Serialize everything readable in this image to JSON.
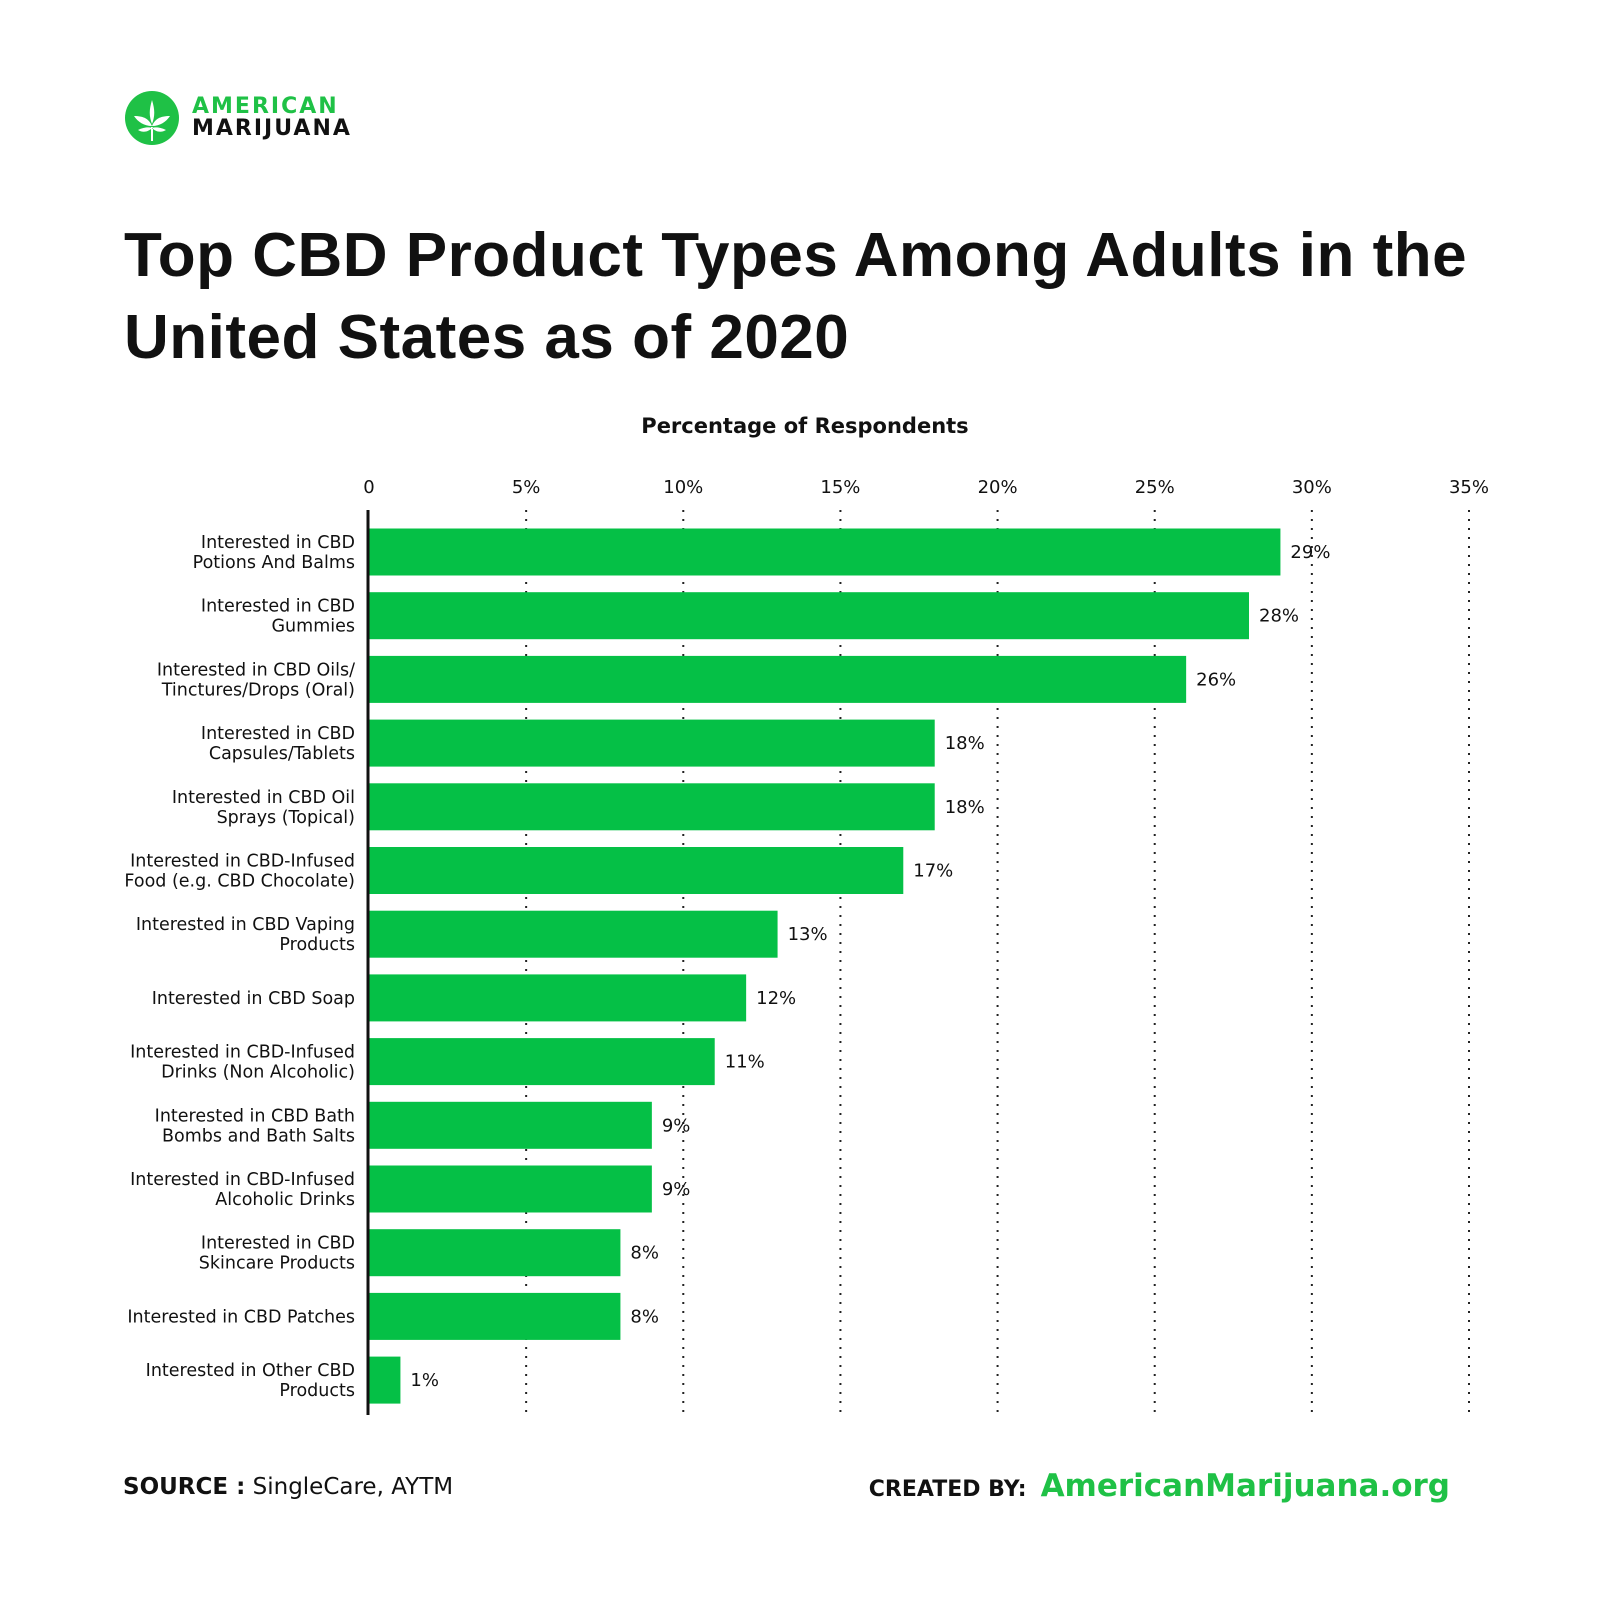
{
  "logo": {
    "line1": "AMERICAN",
    "line2": "MARIJUANA",
    "icon": "cannabis-leaf-circle-icon",
    "color": "#1fc146"
  },
  "title": "Top CBD Product Types Among Adults in the United States as of 2020",
  "chart_data": {
    "type": "bar",
    "orientation": "horizontal",
    "title": "Top CBD Product Types Among Adults in the United States as of 2020",
    "xlabel": "Percentage of Respondents",
    "ylabel": "",
    "xlim": [
      0,
      35
    ],
    "xticks": [
      "0",
      "5%",
      "10%",
      "15%",
      "20%",
      "25%",
      "30%",
      "35%"
    ],
    "grid": "vertical dotted",
    "bar_color": "#05c046",
    "categories": [
      "Interested in CBD Potions And Balms",
      "Interested in CBD Gummies",
      "Interested in CBD Oils/ Tinctures/Drops (Oral)",
      "Interested in CBD Capsules/Tablets",
      "Interested in CBD Oil Sprays (Topical)",
      "Interested in CBD-Infused Food (e.g. CBD Chocolate)",
      "Interested in CBD Vaping Products",
      "Interested in CBD Soap",
      "Interested in CBD-Infused Drinks (Non Alcoholic)",
      "Interested in CBD Bath Bombs and Bath Salts",
      "Interested in CBD-Infused Alcoholic Drinks",
      "Interested in CBD Skincare Products",
      "Interested in CBD Patches",
      "Interested in Other CBD Products"
    ],
    "label_lines": [
      [
        "Interested in CBD",
        "Potions And Balms"
      ],
      [
        "Interested in CBD",
        "Gummies"
      ],
      [
        "Interested in CBD Oils/",
        "Tinctures/Drops (Oral)"
      ],
      [
        "Interested in CBD",
        "Capsules/Tablets"
      ],
      [
        "Interested in CBD Oil",
        "Sprays (Topical)"
      ],
      [
        "Interested in CBD-Infused",
        "Food (e.g. CBD Chocolate)"
      ],
      [
        "Interested in CBD Vaping",
        "Products"
      ],
      [
        "Interested in CBD Soap"
      ],
      [
        "Interested in CBD-Infused",
        "Drinks (Non Alcoholic)"
      ],
      [
        "Interested in CBD Bath",
        "Bombs and Bath Salts"
      ],
      [
        "Interested in CBD-Infused",
        "Alcoholic Drinks"
      ],
      [
        "Interested in CBD",
        "Skincare Products"
      ],
      [
        "Interested in CBD Patches"
      ],
      [
        "Interested in Other CBD",
        "Products"
      ]
    ],
    "values": [
      29,
      28,
      26,
      18,
      18,
      17,
      13,
      12,
      11,
      9,
      9,
      8,
      8,
      1
    ],
    "data_labels": [
      "29%",
      "28%",
      "26%",
      "18%",
      "18%",
      "17%",
      "13%",
      "12%",
      "11%",
      "9%",
      "9%",
      "8%",
      "8%",
      "1%"
    ]
  },
  "footer": {
    "source_label": "SOURCE :",
    "source_value": "SingleCare, AYTM",
    "created_label": "CREATED BY:",
    "created_value": "AmericanMarijuana.org"
  }
}
